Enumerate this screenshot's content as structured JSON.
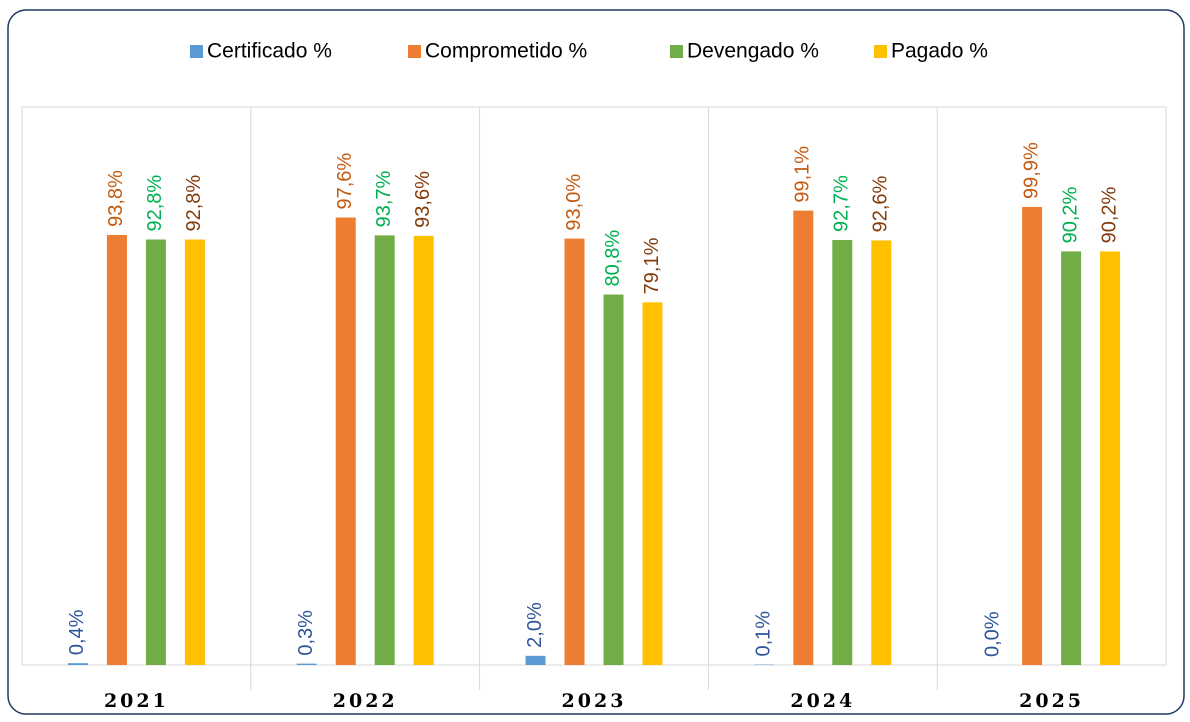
{
  "chart_data": {
    "type": "bar",
    "categories": [
      "2021",
      "2022",
      "2023",
      "2024",
      "2025"
    ],
    "series": [
      {
        "name": "Certificado %",
        "color": "#5b9bd5",
        "label_color": "#2f5597",
        "values": [
          0.4,
          0.3,
          2.0,
          0.1,
          0.0
        ],
        "value_labels": [
          "0,4%",
          "0,3%",
          "2,0%",
          "0,1%",
          "0,0%"
        ]
      },
      {
        "name": "Comprometido %",
        "color": "#ed7d31",
        "label_color": "#c55a11",
        "values": [
          93.8,
          97.6,
          93.0,
          99.1,
          99.9
        ],
        "value_labels": [
          "93,8%",
          "97,6%",
          "93,0%",
          "99,1%",
          "99,9%"
        ]
      },
      {
        "name": "Devengado %",
        "color": "#70ad47",
        "label_color": "#00b050",
        "values": [
          92.8,
          93.7,
          80.8,
          92.7,
          90.2
        ],
        "value_labels": [
          "92,8%",
          "93,7%",
          "80,8%",
          "92,7%",
          "90,2%"
        ]
      },
      {
        "name": "Pagado %",
        "color": "#ffc000",
        "label_color": "#843c0c",
        "values": [
          92.8,
          93.6,
          79.1,
          92.6,
          90.2
        ],
        "value_labels": [
          "92,8%",
          "93,6%",
          "79,1%",
          "92,6%",
          "90,2%"
        ]
      }
    ],
    "ylim": [
      0,
      100
    ],
    "legend": "top"
  }
}
